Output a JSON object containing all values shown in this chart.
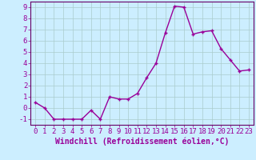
{
  "x": [
    0,
    1,
    2,
    3,
    4,
    5,
    6,
    7,
    8,
    9,
    10,
    11,
    12,
    13,
    14,
    15,
    16,
    17,
    18,
    19,
    20,
    21,
    22,
    23
  ],
  "y": [
    0.5,
    0.0,
    -1.0,
    -1.0,
    -1.0,
    -1.0,
    -0.2,
    -1.0,
    1.0,
    0.8,
    0.8,
    1.3,
    2.7,
    4.0,
    6.7,
    9.1,
    9.0,
    6.6,
    6.8,
    6.9,
    5.3,
    4.3,
    3.3,
    3.4
  ],
  "line_color": "#990099",
  "marker": "+",
  "bg_color": "#cceeff",
  "grid_color": "#aacccc",
  "axis_color": "#660066",
  "xlabel": "Windchill (Refroidissement éolien,°C)",
  "ylim": [
    -1.5,
    9.5
  ],
  "xlim": [
    -0.5,
    23.5
  ],
  "yticks": [
    -1,
    0,
    1,
    2,
    3,
    4,
    5,
    6,
    7,
    8,
    9
  ],
  "xticks": [
    0,
    1,
    2,
    3,
    4,
    5,
    6,
    7,
    8,
    9,
    10,
    11,
    12,
    13,
    14,
    15,
    16,
    17,
    18,
    19,
    20,
    21,
    22,
    23
  ],
  "font_color": "#990099",
  "font_size": 6.5,
  "xlabel_fontsize": 7.0,
  "linewidth": 1.0,
  "markersize": 3.5,
  "markeredgewidth": 1.0
}
